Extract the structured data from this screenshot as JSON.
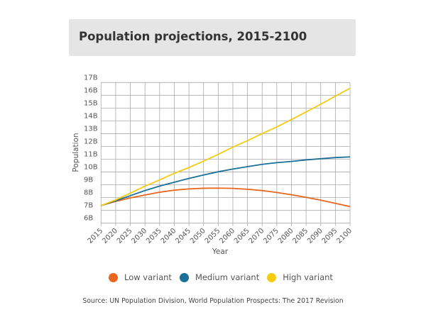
{
  "chart_data": {
    "type": "line",
    "title": "Population projections, 2015-2100",
    "xlabel": "Year",
    "ylabel": "Population",
    "x": [
      2015,
      2020,
      2025,
      2030,
      2035,
      2040,
      2045,
      2050,
      2055,
      2060,
      2065,
      2070,
      2075,
      2080,
      2085,
      2090,
      2095,
      2100
    ],
    "xticks": [
      "2015",
      "2020",
      "2025",
      "2030",
      "2035",
      "2040",
      "2045",
      "2050",
      "2055",
      "2060",
      "2065",
      "2070",
      "2075",
      "2080",
      "2085",
      "2090",
      "2095",
      "2100"
    ],
    "yticks": [
      "6B",
      "7B",
      "8B",
      "9B",
      "10B",
      "11B",
      "12B",
      "13B",
      "14B",
      "15B",
      "16B",
      "17B"
    ],
    "ylim": [
      6,
      17
    ],
    "yunit": "billions",
    "grid": true,
    "legend_position": "bottom",
    "series": [
      {
        "name": "Low variant",
        "color": "#e8661d",
        "values": [
          7.38,
          7.7,
          7.98,
          8.2,
          8.42,
          8.58,
          8.68,
          8.73,
          8.74,
          8.72,
          8.65,
          8.55,
          8.4,
          8.22,
          8.02,
          7.8,
          7.55,
          7.3
        ]
      },
      {
        "name": "Medium variant",
        "color": "#1a7099",
        "values": [
          7.38,
          7.75,
          8.15,
          8.55,
          8.9,
          9.2,
          9.5,
          9.77,
          10.02,
          10.23,
          10.42,
          10.6,
          10.73,
          10.83,
          10.95,
          11.04,
          11.13,
          11.18
        ]
      },
      {
        "name": "High variant",
        "color": "#f5cc12",
        "values": [
          7.38,
          7.82,
          8.35,
          8.9,
          9.38,
          9.9,
          10.35,
          10.85,
          11.38,
          11.95,
          12.45,
          13.0,
          13.53,
          14.1,
          14.7,
          15.3,
          15.93,
          16.55
        ]
      }
    ]
  },
  "source": "Source: UN Population Division, World Population Prospects: The 2017 Revision"
}
